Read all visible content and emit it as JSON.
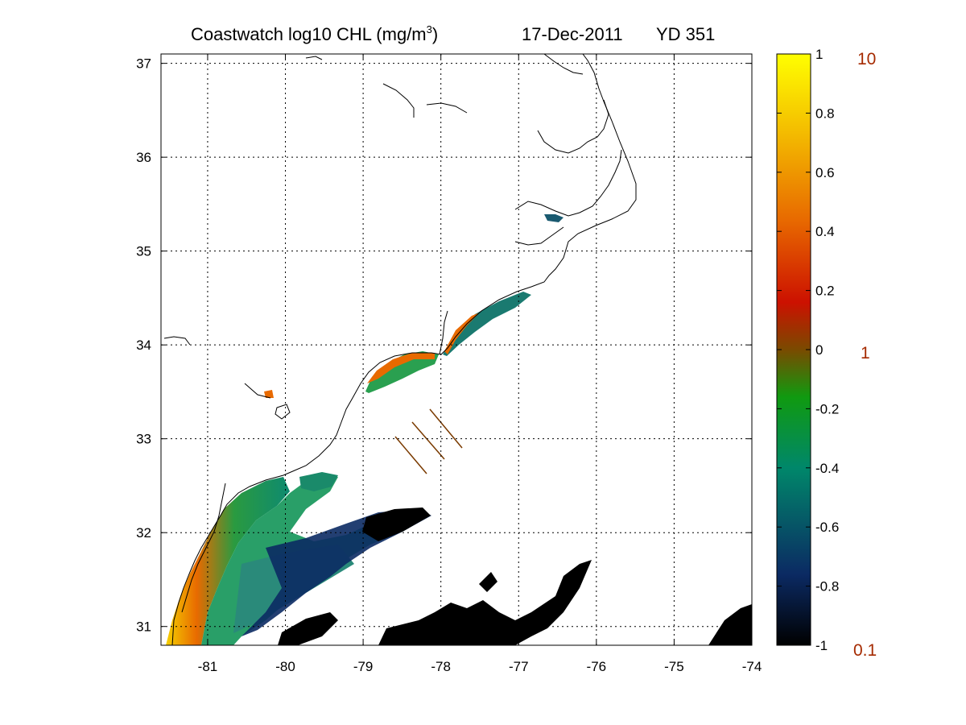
{
  "title": {
    "main": "Coastwatch  log10  CHL (mg/m",
    "superscript": "3",
    "close": ")",
    "date": "17-Dec-2011",
    "yearday": "YD 351"
  },
  "map": {
    "lon_range": [
      -81.6,
      -74
    ],
    "lat_range": [
      30.8,
      37.1
    ],
    "x_ticks": [
      "-81",
      "-80",
      "-79",
      "-78",
      "-77",
      "-76",
      "-75",
      "-74"
    ],
    "y_ticks": [
      "31",
      "32",
      "33",
      "34",
      "35",
      "36",
      "37"
    ],
    "grid": "dotted",
    "land_color": "#ffffff",
    "coastline_color": "#000000"
  },
  "colorbar": {
    "ticks": [
      "1",
      "0.8",
      "0.6",
      "0.4",
      "0.2",
      "0",
      "-0.2",
      "-0.4",
      "-0.6",
      "-0.8",
      "-1"
    ],
    "value_labels": [
      "10",
      "1",
      "0.1"
    ],
    "value_label_color": "#a52a00",
    "colors": [
      "#000000",
      "#0b2a63",
      "#00876a",
      "#109a10",
      "#7a4a00",
      "#cc1100",
      "#e86a00",
      "#f3b800",
      "#ffff00"
    ]
  }
}
